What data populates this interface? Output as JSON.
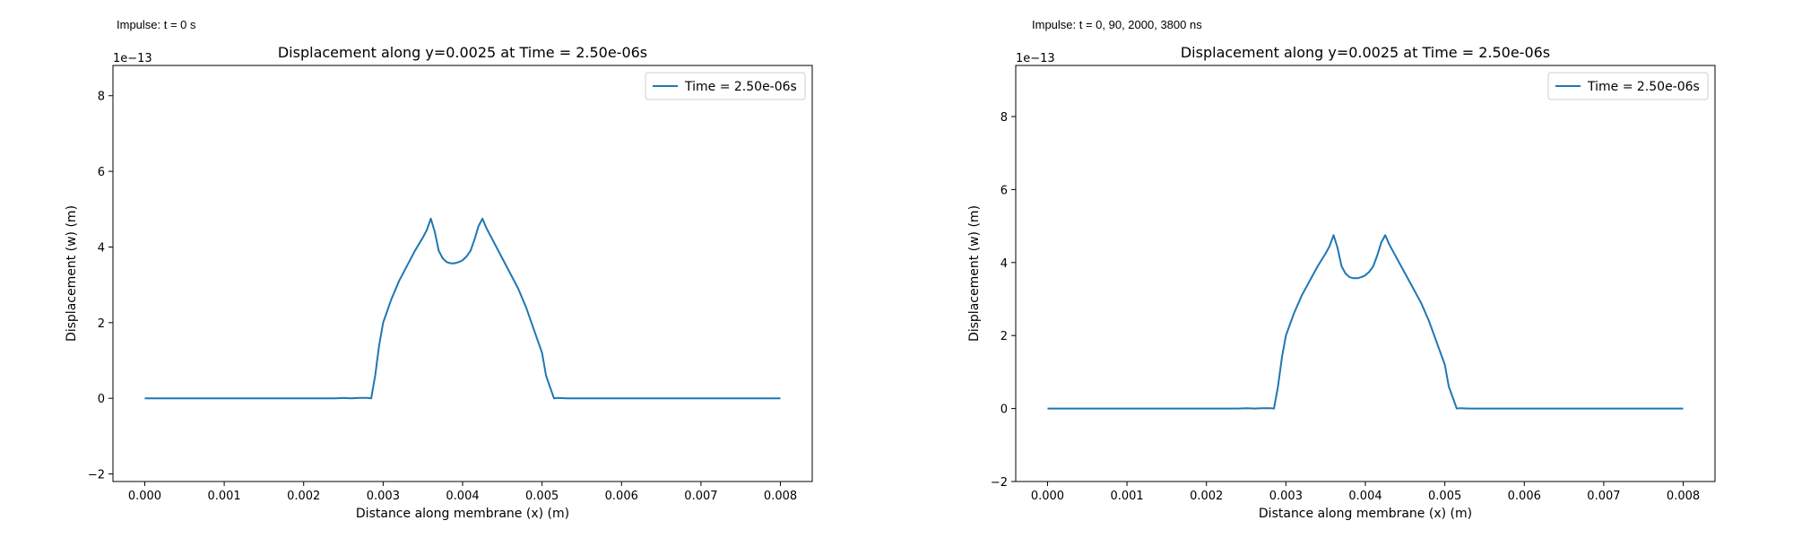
{
  "panels": [
    {
      "caption": "Impulse: t = 0 s"
    },
    {
      "caption": "Impulse: t = 0, 90, 2000, 3800 ns"
    }
  ],
  "chart_data": [
    {
      "type": "line",
      "title": "Displacement along y=0.0025 at Time = 2.50e-06s",
      "xlabel": "Distance along membrane (x) (m)",
      "ylabel": "Displacement (w) (m)",
      "y_offset_text": "1e−13",
      "y_scale": 1e-13,
      "xlim": [
        -0.0004,
        0.0084
      ],
      "ylim": [
        -2.2e-13,
        8.8e-13
      ],
      "xticks": [
        0,
        0.001,
        0.002,
        0.003,
        0.004,
        0.005,
        0.006,
        0.007,
        0.008
      ],
      "xtick_labels": [
        "0.000",
        "0.001",
        "0.002",
        "0.003",
        "0.004",
        "0.005",
        "0.006",
        "0.007",
        "0.008"
      ],
      "yticks": [
        -2e-13,
        0,
        2e-13,
        4e-13,
        6e-13,
        8e-13
      ],
      "ytick_labels": [
        "−2",
        "0",
        "2",
        "4",
        "6",
        "8"
      ],
      "grid": false,
      "legend_position": "top-right",
      "series": [
        {
          "name": "Time = 2.50e-06s",
          "color": "#1f77b4",
          "x": [
            0,
            0.0005,
            0.001,
            0.0015,
            0.002,
            0.0024,
            0.0025,
            0.0026,
            0.0027,
            0.0028,
            0.00285,
            0.0029,
            0.00295,
            0.003,
            0.0031,
            0.0032,
            0.0033,
            0.0034,
            0.0035,
            0.00355,
            0.0036,
            0.00365,
            0.0037,
            0.00375,
            0.0038,
            0.00385,
            0.0039,
            0.00395,
            0.004,
            0.00405,
            0.0041,
            0.00415,
            0.0042,
            0.00425,
            0.0043,
            0.00435,
            0.0044,
            0.0045,
            0.0046,
            0.0047,
            0.0048,
            0.0049,
            0.005,
            0.00505,
            0.0051,
            0.00515,
            0.0052,
            0.0053,
            0.0054,
            0.0055,
            0.006,
            0.007,
            0.008
          ],
          "y": [
            0,
            0,
            0,
            0,
            0,
            0,
            1e-15,
            0,
            1e-15,
            1e-15,
            0,
            6e-14,
            1.4e-13,
            2e-13,
            2.6e-13,
            3.1e-13,
            3.5e-13,
            3.9e-13,
            4.25e-13,
            4.45e-13,
            4.75e-13,
            4.4e-13,
            3.9e-13,
            3.7e-13,
            3.6e-13,
            3.57e-13,
            3.57e-13,
            3.6e-13,
            3.65e-13,
            3.75e-13,
            3.9e-13,
            4.2e-13,
            4.55e-13,
            4.75e-13,
            4.5e-13,
            4.3e-13,
            4.1e-13,
            3.7e-13,
            3.3e-13,
            2.9e-13,
            2.4e-13,
            1.8e-13,
            1.2e-13,
            6e-14,
            3e-14,
            0,
            1e-15,
            0,
            0,
            0,
            0,
            0,
            0
          ]
        }
      ]
    },
    {
      "type": "line",
      "title": "Displacement along y=0.0025 at Time = 2.50e-06s",
      "xlabel": "Distance along membrane (x) (m)",
      "ylabel": "Displacement (w) (m)",
      "y_offset_text": "1e−13",
      "y_scale": 1e-13,
      "xlim": [
        -0.0004,
        0.0084
      ],
      "ylim": [
        -2e-13,
        9.4e-13
      ],
      "xticks": [
        0,
        0.001,
        0.002,
        0.003,
        0.004,
        0.005,
        0.006,
        0.007,
        0.008
      ],
      "xtick_labels": [
        "0.000",
        "0.001",
        "0.002",
        "0.003",
        "0.004",
        "0.005",
        "0.006",
        "0.007",
        "0.008"
      ],
      "yticks": [
        -2e-13,
        0,
        2e-13,
        4e-13,
        6e-13,
        8e-13
      ],
      "ytick_labels": [
        "−2",
        "0",
        "2",
        "4",
        "6",
        "8"
      ],
      "grid": false,
      "legend_position": "top-right",
      "series": [
        {
          "name": "Time = 2.50e-06s",
          "color": "#1f77b4",
          "x": [
            0,
            0.0005,
            0.001,
            0.0015,
            0.002,
            0.0024,
            0.0025,
            0.0026,
            0.0027,
            0.0028,
            0.00285,
            0.0029,
            0.00295,
            0.003,
            0.0031,
            0.0032,
            0.0033,
            0.0034,
            0.0035,
            0.00355,
            0.0036,
            0.00365,
            0.0037,
            0.00375,
            0.0038,
            0.00385,
            0.0039,
            0.00395,
            0.004,
            0.00405,
            0.0041,
            0.00415,
            0.0042,
            0.00425,
            0.0043,
            0.00435,
            0.0044,
            0.0045,
            0.0046,
            0.0047,
            0.0048,
            0.0049,
            0.005,
            0.00505,
            0.0051,
            0.00515,
            0.0052,
            0.0053,
            0.0054,
            0.0055,
            0.006,
            0.007,
            0.008
          ],
          "y": [
            0,
            0,
            0,
            0,
            0,
            0,
            1e-15,
            0,
            1e-15,
            1e-15,
            0,
            6e-14,
            1.4e-13,
            2e-13,
            2.6e-13,
            3.1e-13,
            3.5e-13,
            3.9e-13,
            4.25e-13,
            4.45e-13,
            4.75e-13,
            4.4e-13,
            3.9e-13,
            3.7e-13,
            3.6e-13,
            3.57e-13,
            3.57e-13,
            3.6e-13,
            3.65e-13,
            3.75e-13,
            3.9e-13,
            4.2e-13,
            4.55e-13,
            4.75e-13,
            4.5e-13,
            4.3e-13,
            4.1e-13,
            3.7e-13,
            3.3e-13,
            2.9e-13,
            2.4e-13,
            1.8e-13,
            1.2e-13,
            6e-14,
            3e-14,
            0,
            1e-15,
            0,
            0,
            0,
            0,
            0,
            0
          ]
        }
      ]
    }
  ]
}
